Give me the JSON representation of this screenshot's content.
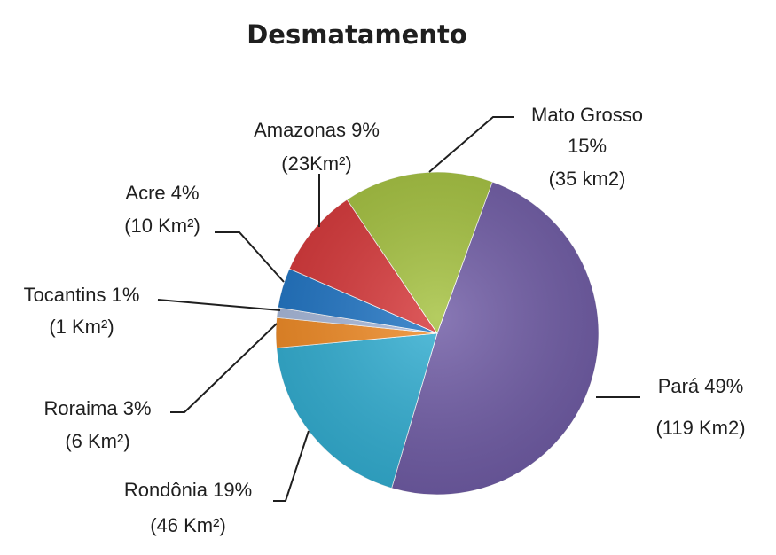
{
  "chart_data": {
    "type": "pie",
    "title": "Desmatamento",
    "slices": [
      {
        "name": "Pará",
        "percent": 49,
        "area": "119 Km2",
        "color": "#6f5ba5",
        "lines": [
          "Pará  49%",
          "(119 Km2)"
        ]
      },
      {
        "name": "Rondônia",
        "percent": 19,
        "area": "46 Km²",
        "color": "#31aed2",
        "lines": [
          "Rondônia 19%",
          "(46 Km²)"
        ]
      },
      {
        "name": "Roraima",
        "percent": 3,
        "area": "6 Km²",
        "color": "#f08a24",
        "lines": [
          "Roraima 3%",
          "(6 Km²)"
        ]
      },
      {
        "name": "Tocantins",
        "percent": 1,
        "area": "1 Km²",
        "color": "#a7b8da",
        "lines": [
          "Tocantins 1%",
          "(1 Km²)"
        ]
      },
      {
        "name": "Acre",
        "percent": 4,
        "area": "10 Km²",
        "color": "#1f74c4",
        "lines": [
          "Acre 4%",
          "(10 Km²)"
        ]
      },
      {
        "name": "Amazonas",
        "percent": 9,
        "area": "23Km²",
        "color": "#d63638",
        "lines": [
          "Amazonas 9%",
          "(23Km²)"
        ]
      },
      {
        "name": "Mato Grosso",
        "percent": 15,
        "area": "35 km2",
        "color": "#a4c13e",
        "lines": [
          "Mato Grosso",
          "15%",
          "(35 km2)"
        ]
      }
    ],
    "legend": "none",
    "grid": false
  }
}
